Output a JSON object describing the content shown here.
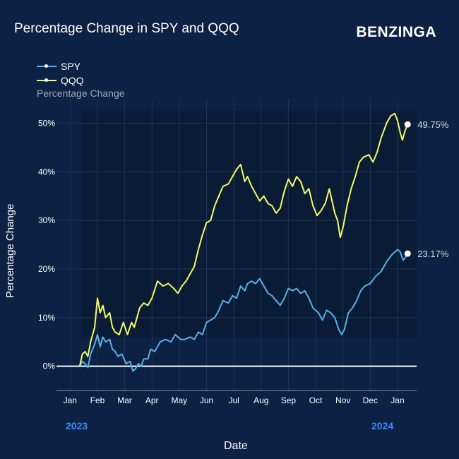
{
  "header": {
    "title": "Percentage Change in SPY and QQQ",
    "brand": "BENZINGA"
  },
  "colors": {
    "background": "#0c2143",
    "spy": "#5ab0e6",
    "qqq": "#f2fa62",
    "year_label": "#3d8bff"
  },
  "chart_data": {
    "type": "line",
    "title": "Percentage Change in SPY and QQQ",
    "subtitle": "Percentage Change",
    "xlabel": "Date",
    "ylabel": "Percentage Change",
    "ylim": [
      -5,
      55
    ],
    "y_ticks": [
      0,
      10,
      20,
      30,
      40,
      50
    ],
    "y_tick_labels": [
      "0%",
      "10%",
      "20%",
      "30%",
      "40%",
      "50%"
    ],
    "x_range": [
      0,
      13.2
    ],
    "x_ticks": [
      0.5,
      1.5,
      2.5,
      3.5,
      4.5,
      5.5,
      6.5,
      7.5,
      8.5,
      9.5,
      10.5,
      11.5,
      12.5
    ],
    "x_tick_labels": [
      "Jan",
      "Feb",
      "Mar",
      "Apr",
      "May",
      "Jun",
      "Jul",
      "Aug",
      "Sep",
      "Oct",
      "Nov",
      "Dec",
      "Jan"
    ],
    "year_labels": [
      "2023",
      "2024"
    ],
    "legend": [
      "SPY",
      "QQQ"
    ],
    "series": [
      {
        "name": "SPY",
        "end_label": "23.17%",
        "points": [
          [
            0.85,
            0
          ],
          [
            0.95,
            1.0
          ],
          [
            1.05,
            0.5
          ],
          [
            1.15,
            -0.3
          ],
          [
            1.25,
            2.5
          ],
          [
            1.4,
            4.5
          ],
          [
            1.5,
            6.5
          ],
          [
            1.6,
            4.0
          ],
          [
            1.7,
            6.0
          ],
          [
            1.8,
            5.0
          ],
          [
            1.95,
            5.5
          ],
          [
            2.05,
            3.5
          ],
          [
            2.15,
            3.0
          ],
          [
            2.25,
            2.0
          ],
          [
            2.4,
            2.5
          ],
          [
            2.55,
            0.5
          ],
          [
            2.7,
            1.0
          ],
          [
            2.8,
            -1.0
          ],
          [
            2.9,
            -0.5
          ],
          [
            3.0,
            0.5
          ],
          [
            3.1,
            0.0
          ],
          [
            3.2,
            1.5
          ],
          [
            3.35,
            1.5
          ],
          [
            3.45,
            3.5
          ],
          [
            3.6,
            3.0
          ],
          [
            3.8,
            5.0
          ],
          [
            4.0,
            5.5
          ],
          [
            4.2,
            5.0
          ],
          [
            4.35,
            6.5
          ],
          [
            4.55,
            5.5
          ],
          [
            4.7,
            5.5
          ],
          [
            4.9,
            6.0
          ],
          [
            5.05,
            5.5
          ],
          [
            5.2,
            7.0
          ],
          [
            5.35,
            6.5
          ],
          [
            5.5,
            9.0
          ],
          [
            5.65,
            9.5
          ],
          [
            5.8,
            10.0
          ],
          [
            5.95,
            11.5
          ],
          [
            6.1,
            13.5
          ],
          [
            6.3,
            13.0
          ],
          [
            6.45,
            14.5
          ],
          [
            6.6,
            14.0
          ],
          [
            6.75,
            16.5
          ],
          [
            6.9,
            15.5
          ],
          [
            7.0,
            17.0
          ],
          [
            7.15,
            17.5
          ],
          [
            7.3,
            17.0
          ],
          [
            7.45,
            18.0
          ],
          [
            7.6,
            16.5
          ],
          [
            7.75,
            15.0
          ],
          [
            7.9,
            14.5
          ],
          [
            8.05,
            13.5
          ],
          [
            8.2,
            12.5
          ],
          [
            8.35,
            14.0
          ],
          [
            8.5,
            16.0
          ],
          [
            8.65,
            15.5
          ],
          [
            8.8,
            16.0
          ],
          [
            8.95,
            15.0
          ],
          [
            9.1,
            15.5
          ],
          [
            9.25,
            14.0
          ],
          [
            9.4,
            12.0
          ],
          [
            9.5,
            11.5
          ],
          [
            9.6,
            11.0
          ],
          [
            9.75,
            9.5
          ],
          [
            9.9,
            11.5
          ],
          [
            10.05,
            11.0
          ],
          [
            10.2,
            10.0
          ],
          [
            10.35,
            7.5
          ],
          [
            10.45,
            6.5
          ],
          [
            10.55,
            7.5
          ],
          [
            10.7,
            11.0
          ],
          [
            10.85,
            12.0
          ],
          [
            11.0,
            13.5
          ],
          [
            11.15,
            15.5
          ],
          [
            11.3,
            16.5
          ],
          [
            11.5,
            17.0
          ],
          [
            11.7,
            18.5
          ],
          [
            11.9,
            19.5
          ],
          [
            12.1,
            21.5
          ],
          [
            12.3,
            23.0
          ],
          [
            12.5,
            24.0
          ],
          [
            12.6,
            23.5
          ],
          [
            12.7,
            21.8
          ],
          [
            12.8,
            22.5
          ],
          [
            12.87,
            23.17
          ]
        ]
      },
      {
        "name": "QQQ",
        "end_label": "49.75%",
        "points": [
          [
            0.85,
            0
          ],
          [
            0.95,
            2.5
          ],
          [
            1.05,
            3.0
          ],
          [
            1.15,
            2.0
          ],
          [
            1.25,
            5.0
          ],
          [
            1.4,
            8.0
          ],
          [
            1.5,
            14.0
          ],
          [
            1.6,
            11.0
          ],
          [
            1.7,
            12.5
          ],
          [
            1.8,
            10.0
          ],
          [
            1.95,
            11.0
          ],
          [
            2.05,
            8.0
          ],
          [
            2.15,
            7.0
          ],
          [
            2.3,
            6.5
          ],
          [
            2.45,
            9.0
          ],
          [
            2.6,
            6.5
          ],
          [
            2.75,
            9.0
          ],
          [
            2.85,
            8.0
          ],
          [
            2.95,
            10.0
          ],
          [
            3.05,
            12.0
          ],
          [
            3.2,
            13.0
          ],
          [
            3.35,
            12.5
          ],
          [
            3.5,
            14.0
          ],
          [
            3.7,
            17.5
          ],
          [
            3.9,
            16.5
          ],
          [
            4.1,
            17.0
          ],
          [
            4.3,
            16.0
          ],
          [
            4.45,
            15.0
          ],
          [
            4.6,
            16.5
          ],
          [
            4.75,
            17.5
          ],
          [
            4.9,
            19.0
          ],
          [
            5.05,
            20.5
          ],
          [
            5.2,
            24.0
          ],
          [
            5.35,
            27.0
          ],
          [
            5.5,
            29.5
          ],
          [
            5.65,
            30.0
          ],
          [
            5.8,
            33.0
          ],
          [
            5.95,
            35.0
          ],
          [
            6.1,
            37.0
          ],
          [
            6.3,
            37.5
          ],
          [
            6.45,
            39.0
          ],
          [
            6.6,
            40.5
          ],
          [
            6.75,
            41.5
          ],
          [
            6.9,
            38.0
          ],
          [
            7.0,
            39.0
          ],
          [
            7.15,
            37.0
          ],
          [
            7.3,
            35.5
          ],
          [
            7.45,
            34.0
          ],
          [
            7.6,
            35.0
          ],
          [
            7.75,
            33.5
          ],
          [
            7.9,
            33.0
          ],
          [
            8.05,
            31.5
          ],
          [
            8.2,
            32.5
          ],
          [
            8.35,
            36.0
          ],
          [
            8.5,
            38.5
          ],
          [
            8.65,
            37.0
          ],
          [
            8.8,
            39.0
          ],
          [
            8.95,
            38.0
          ],
          [
            9.1,
            35.5
          ],
          [
            9.25,
            36.5
          ],
          [
            9.4,
            33.0
          ],
          [
            9.55,
            31.0
          ],
          [
            9.7,
            32.0
          ],
          [
            9.85,
            33.5
          ],
          [
            10.0,
            36.5
          ],
          [
            10.1,
            34.0
          ],
          [
            10.2,
            31.5
          ],
          [
            10.3,
            30.0
          ],
          [
            10.4,
            26.5
          ],
          [
            10.5,
            28.5
          ],
          [
            10.65,
            33.0
          ],
          [
            10.8,
            36.5
          ],
          [
            10.95,
            39.0
          ],
          [
            11.1,
            42.0
          ],
          [
            11.25,
            43.0
          ],
          [
            11.45,
            43.5
          ],
          [
            11.6,
            42.0
          ],
          [
            11.75,
            44.0
          ],
          [
            11.9,
            47.0
          ],
          [
            12.1,
            50.0
          ],
          [
            12.25,
            51.5
          ],
          [
            12.4,
            52.0
          ],
          [
            12.5,
            50.5
          ],
          [
            12.6,
            48.0
          ],
          [
            12.68,
            46.5
          ],
          [
            12.78,
            48.5
          ],
          [
            12.87,
            49.75
          ]
        ]
      }
    ]
  }
}
